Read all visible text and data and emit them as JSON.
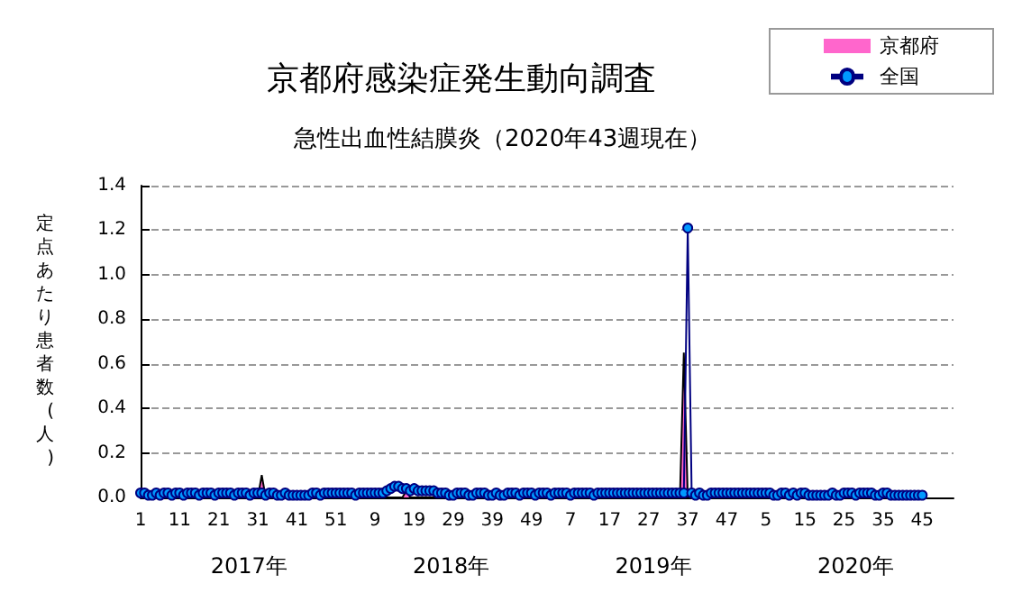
{
  "chart_data": {
    "type": "area",
    "title": "京都府感染症発生動向調査",
    "subtitle": "急性出血性結膜炎（2020年43週現在）",
    "ylabel": "定点あたり患者数(人)",
    "annotations": [
      "2017年",
      "2018年",
      "2019年",
      "2020年"
    ],
    "categories": [
      "1",
      null,
      null,
      null,
      null,
      null,
      null,
      null,
      null,
      null,
      "11",
      null,
      null,
      null,
      null,
      null,
      null,
      null,
      null,
      null,
      "21",
      null,
      null,
      null,
      null,
      null,
      null,
      null,
      null,
      null,
      "31",
      null,
      null,
      null,
      null,
      null,
      null,
      null,
      null,
      null,
      "41",
      null,
      null,
      null,
      null,
      null,
      null,
      null,
      null,
      null,
      "51",
      null,
      null,
      null,
      null,
      null,
      null,
      null,
      null,
      null,
      "9",
      null,
      null,
      null,
      null,
      null,
      null,
      null,
      null,
      null,
      "19",
      null,
      null,
      null,
      null,
      null,
      null,
      null,
      null,
      null,
      "29",
      null,
      null,
      null,
      null,
      null,
      null,
      null,
      null,
      null,
      "39",
      null,
      null,
      null,
      null,
      null,
      null,
      null,
      null,
      null,
      "49",
      null,
      null,
      null,
      null,
      null,
      null,
      null,
      null,
      null,
      "7",
      null,
      null,
      null,
      null,
      null,
      null,
      null,
      null,
      null,
      "17",
      null,
      null,
      null,
      null,
      null,
      null,
      null,
      null,
      null,
      "27",
      null,
      null,
      null,
      null,
      null,
      null,
      null,
      null,
      null,
      "37",
      null,
      null,
      null,
      null,
      null,
      null,
      null,
      null,
      null,
      "47",
      null,
      null,
      null,
      null,
      null,
      null,
      null,
      null,
      null,
      "5",
      null,
      null,
      null,
      null,
      null,
      null,
      null,
      null,
      null,
      "15",
      null,
      null,
      null,
      null,
      null,
      null,
      null,
      null,
      null,
      "25",
      null,
      null,
      null,
      null,
      null,
      null,
      null,
      null,
      null,
      "35",
      null,
      null,
      null,
      null,
      null,
      null,
      null,
      null,
      null,
      "45",
      null,
      null,
      null,
      null,
      null,
      null,
      null,
      null
    ],
    "series": [
      {
        "name": "京都府",
        "color": "#ff66cc",
        "values": [
          0,
          0.03,
          0,
          0,
          0,
          0,
          0,
          0,
          0,
          0,
          0,
          0,
          0,
          0,
          0,
          0,
          0,
          0,
          0,
          0,
          0,
          0,
          0,
          0,
          0,
          0,
          0.03,
          0,
          0,
          0.03,
          0,
          0.1,
          0,
          0,
          0,
          0,
          0,
          0,
          0,
          0,
          0,
          0,
          0,
          0,
          0.03,
          0,
          0,
          0,
          0,
          0,
          0,
          0,
          0,
          0,
          0.03,
          0,
          0,
          0,
          0,
          0.03,
          0,
          0,
          0,
          0,
          0,
          0,
          0,
          0,
          0.03,
          0,
          0,
          0,
          0,
          0,
          0,
          0,
          0,
          0,
          0,
          0,
          0,
          0,
          0,
          0,
          0,
          0,
          0,
          0,
          0,
          0,
          0,
          0,
          0,
          0,
          0,
          0,
          0,
          0,
          0,
          0,
          0,
          0,
          0,
          0,
          0,
          0,
          0,
          0,
          0,
          0,
          0,
          0,
          0,
          0,
          0,
          0,
          0,
          0,
          0,
          0,
          0,
          0,
          0,
          0,
          0,
          0,
          0,
          0,
          0,
          0,
          0,
          0,
          0,
          0,
          0,
          0,
          0,
          0,
          0,
          0.65,
          0,
          0,
          0,
          0,
          0,
          0,
          0,
          0,
          0,
          0,
          0,
          0,
          0,
          0,
          0,
          0,
          0.03,
          0,
          0,
          0,
          0,
          0,
          0,
          0,
          0,
          0,
          0,
          0,
          0,
          0,
          0,
          0,
          0,
          0,
          0,
          0,
          0,
          0,
          0,
          0,
          0,
          0,
          0,
          0,
          0,
          0,
          0,
          0,
          0,
          0,
          0,
          0,
          0,
          0,
          0,
          0,
          0,
          0,
          0,
          0,
          0,
          null,
          null,
          null,
          null,
          null,
          null,
          null,
          null
        ]
      },
      {
        "name": "全国",
        "type": "line",
        "color": "#000080",
        "marker": "circle",
        "values": [
          0.02,
          0.02,
          0.01,
          0.01,
          0.02,
          0.01,
          0.02,
          0.02,
          0.01,
          0.02,
          0.02,
          0.01,
          0.02,
          0.02,
          0.02,
          0.01,
          0.02,
          0.02,
          0.02,
          0.01,
          0.02,
          0.02,
          0.02,
          0.02,
          0.01,
          0.02,
          0.02,
          0.02,
          0.01,
          0.02,
          0.02,
          0.02,
          0.01,
          0.02,
          0.02,
          0.01,
          0.01,
          0.02,
          0.01,
          0.01,
          0.01,
          0.01,
          0.01,
          0.01,
          0.02,
          0.02,
          0.01,
          0.02,
          0.02,
          0.02,
          0.02,
          0.02,
          0.02,
          0.02,
          0.02,
          0.01,
          0.02,
          0.02,
          0.02,
          0.02,
          0.02,
          0.02,
          0.02,
          0.03,
          0.04,
          0.05,
          0.05,
          0.04,
          0.04,
          0.03,
          0.04,
          0.03,
          0.03,
          0.03,
          0.03,
          0.03,
          0.02,
          0.02,
          0.02,
          0.01,
          0.01,
          0.02,
          0.02,
          0.02,
          0.01,
          0.01,
          0.02,
          0.02,
          0.02,
          0.01,
          0.01,
          0.02,
          0.01,
          0.01,
          0.02,
          0.02,
          0.02,
          0.01,
          0.02,
          0.02,
          0.02,
          0.01,
          0.02,
          0.02,
          0.02,
          0.01,
          0.02,
          0.02,
          0.02,
          0.02,
          0.01,
          0.02,
          0.02,
          0.02,
          0.02,
          0.02,
          0.01,
          0.02,
          0.02,
          0.02,
          0.02,
          0.02,
          0.02,
          0.02,
          0.02,
          0.02,
          0.02,
          0.02,
          0.02,
          0.02,
          0.02,
          0.02,
          0.02,
          0.02,
          0.02,
          0.02,
          0.02,
          0.02,
          0.02,
          0.02,
          1.21,
          0.02,
          0.01,
          0.02,
          0.01,
          0.01,
          0.02,
          0.02,
          0.02,
          0.02,
          0.02,
          0.02,
          0.02,
          0.02,
          0.02,
          0.02,
          0.02,
          0.02,
          0.02,
          0.02,
          0.02,
          0.02,
          0.01,
          0.01,
          0.02,
          0.02,
          0.01,
          0.02,
          0.01,
          0.02,
          0.02,
          0.01,
          0.01,
          0.01,
          0.01,
          0.01,
          0.01,
          0.02,
          0.01,
          0.01,
          0.02,
          0.02,
          0.02,
          0.01,
          0.02,
          0.02,
          0.02,
          0.02,
          0.01,
          0.01,
          0.02,
          0.02,
          0.01,
          0.01,
          0.01,
          0.01,
          0.01,
          0.01,
          0.01,
          0.01,
          0.01,
          null,
          null,
          null,
          null,
          null,
          null,
          null,
          null
        ]
      }
    ],
    "ylim": [
      0,
      1.4
    ],
    "yticks": [
      {
        "value": 0,
        "label": "0.0"
      },
      {
        "value": 0.2,
        "label": "0.2"
      },
      {
        "value": 0.4,
        "label": "0.4"
      },
      {
        "value": 0.6,
        "label": "0.6"
      },
      {
        "value": 0.8,
        "label": "0.8"
      },
      {
        "value": 1,
        "label": "1.0"
      },
      {
        "value": 1.2,
        "label": "1.2"
      },
      {
        "value": 1.4,
        "label": "1.4"
      }
    ],
    "grid": "y",
    "legend": "top right"
  }
}
